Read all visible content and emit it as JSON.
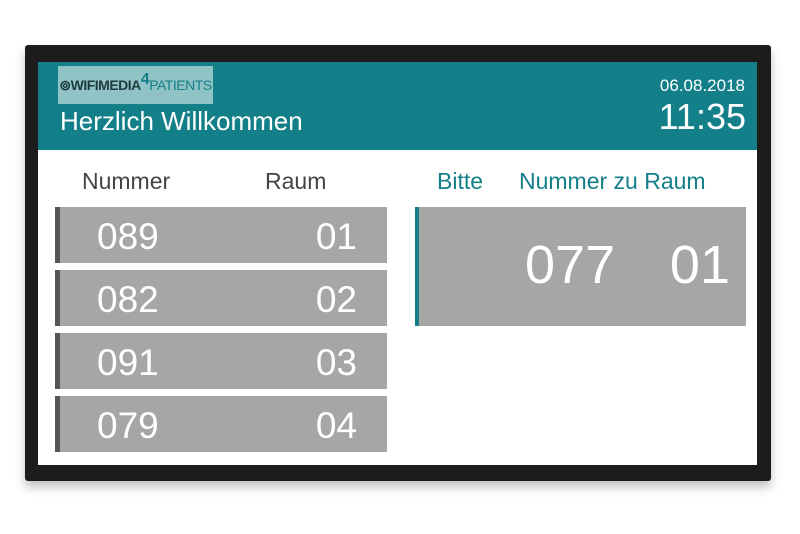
{
  "header": {
    "logo": {
      "part1": "⊚WIFIMEDIA",
      "part2": "4",
      "part3": "PATIENTS"
    },
    "title": "Herzlich Willkommen",
    "date": "06.08.2018",
    "time": "11:35",
    "accent": "#137f88"
  },
  "queue": {
    "headers": {
      "number": "Nummer",
      "room": "Raum"
    },
    "rows": [
      {
        "number": "089",
        "room": "01"
      },
      {
        "number": "082",
        "room": "02"
      },
      {
        "number": "091",
        "room": "03"
      },
      {
        "number": "079",
        "room": "04"
      }
    ]
  },
  "current": {
    "headers": {
      "please": "Bitte",
      "number_to_room": "Nummer zu Raum"
    },
    "number": "077",
    "room": "01"
  }
}
